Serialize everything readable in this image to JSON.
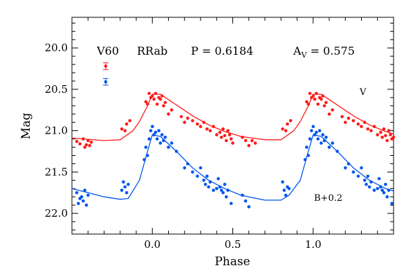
{
  "chart_data": {
    "type": "scatter",
    "xlabel": "Phase",
    "ylabel": "Mag",
    "xlim": [
      -0.5,
      1.5
    ],
    "ylim": [
      22.25,
      19.63
    ],
    "y_inverted": true,
    "grid": false,
    "x_ticks": [
      0.0,
      0.5,
      1.0
    ],
    "x_tick_labels": [
      "0.0",
      "0.5",
      "1.0"
    ],
    "y_ticks": [
      20.0,
      20.5,
      21.0,
      21.5,
      22.0
    ],
    "y_tick_labels": [
      "20.0",
      "20.5",
      "21.0",
      "21.5",
      "22.0"
    ],
    "header": {
      "star": "V60",
      "type": "RRab",
      "period": "P = 0.6184",
      "amp_label": "A",
      "amp_sub": "V",
      "amp_value": " = 0.575"
    },
    "colors": {
      "V": "#ff1a1a",
      "B": "#0055ee",
      "axis": "#000000"
    },
    "error_bars": [
      {
        "name": "V",
        "x": -0.29,
        "y": 20.22,
        "err": 0.04
      },
      {
        "name": "B",
        "x": -0.29,
        "y": 20.41,
        "err": 0.04
      }
    ],
    "series_labels": {
      "V": "V",
      "B": "B+0.2"
    },
    "series": [
      {
        "name": "V",
        "curve": [
          [
            -0.5,
            21.09
          ],
          [
            -0.3,
            21.12
          ],
          [
            -0.2,
            21.11
          ],
          [
            -0.12,
            21.0
          ],
          [
            -0.08,
            20.89
          ],
          [
            -0.03,
            20.7
          ],
          [
            0.0,
            20.56
          ],
          [
            0.05,
            20.56
          ],
          [
            0.15,
            20.69
          ],
          [
            0.25,
            20.82
          ],
          [
            0.35,
            20.93
          ],
          [
            0.45,
            21.01
          ],
          [
            0.55,
            21.07
          ],
          [
            0.7,
            21.11
          ],
          [
            0.8,
            21.11
          ],
          [
            0.88,
            21.0
          ],
          [
            0.92,
            20.89
          ],
          [
            0.97,
            20.7
          ],
          [
            1.0,
            20.56
          ],
          [
            1.05,
            20.56
          ],
          [
            1.15,
            20.69
          ],
          [
            1.25,
            20.82
          ],
          [
            1.35,
            20.93
          ],
          [
            1.45,
            21.01
          ],
          [
            1.5,
            21.04
          ]
        ],
        "x": [
          -0.47,
          -0.45,
          -0.43,
          -0.42,
          -0.41,
          -0.4,
          -0.39,
          -0.38,
          -0.19,
          -0.17,
          -0.16,
          -0.14,
          -0.04,
          -0.03,
          -0.02,
          -0.01,
          0.0,
          0.01,
          0.02,
          0.03,
          0.04,
          0.05,
          0.06,
          0.07,
          0.08,
          0.1,
          0.12,
          0.18,
          0.2,
          0.22,
          0.25,
          0.28,
          0.3,
          0.32,
          0.34,
          0.36,
          0.38,
          0.4,
          0.42,
          0.43,
          0.44,
          0.45,
          0.46,
          0.47,
          0.48,
          0.49,
          0.5,
          0.56,
          0.58,
          0.6,
          0.62,
          0.64,
          0.81,
          0.83,
          0.84,
          0.86,
          0.96,
          0.97,
          0.98,
          0.99,
          1.0,
          1.01,
          1.02,
          1.03,
          1.04,
          1.05,
          1.06,
          1.07,
          1.08,
          1.1,
          1.12,
          1.18,
          1.2,
          1.22,
          1.25,
          1.28,
          1.3,
          1.32,
          1.34,
          1.36,
          1.38,
          1.4,
          1.42,
          1.43,
          1.44,
          1.45,
          1.46,
          1.47,
          1.48,
          1.49,
          1.5
        ],
        "y": [
          21.13,
          21.16,
          21.1,
          21.2,
          21.17,
          21.12,
          21.18,
          21.14,
          20.98,
          21.0,
          20.92,
          20.88,
          20.65,
          20.68,
          20.55,
          20.6,
          20.58,
          20.62,
          20.55,
          20.68,
          20.6,
          20.62,
          20.58,
          20.7,
          20.66,
          20.8,
          20.75,
          20.83,
          20.9,
          20.85,
          20.88,
          20.92,
          20.95,
          20.9,
          20.98,
          21.0,
          20.95,
          21.05,
          21.02,
          21.08,
          20.98,
          21.06,
          21.12,
          21.0,
          21.05,
          21.1,
          21.15,
          21.08,
          21.12,
          21.18,
          21.12,
          21.15,
          20.98,
          21.0,
          20.92,
          20.88,
          20.65,
          20.68,
          20.55,
          20.6,
          20.58,
          20.62,
          20.55,
          20.68,
          20.6,
          20.62,
          20.58,
          20.7,
          20.66,
          20.8,
          20.75,
          20.83,
          20.9,
          20.85,
          20.88,
          20.92,
          20.95,
          20.9,
          20.98,
          21.0,
          20.95,
          21.05,
          21.02,
          21.08,
          20.98,
          21.06,
          21.12,
          21.0,
          21.05,
          21.1,
          21.08
        ]
      },
      {
        "name": "B",
        "curve": [
          [
            -0.5,
            21.7
          ],
          [
            -0.3,
            21.8
          ],
          [
            -0.2,
            21.83
          ],
          [
            -0.15,
            21.82
          ],
          [
            -0.08,
            21.6
          ],
          [
            -0.03,
            21.25
          ],
          [
            0.0,
            21.05
          ],
          [
            0.05,
            21.07
          ],
          [
            0.15,
            21.25
          ],
          [
            0.25,
            21.45
          ],
          [
            0.35,
            21.6
          ],
          [
            0.45,
            21.7
          ],
          [
            0.55,
            21.78
          ],
          [
            0.7,
            21.84
          ],
          [
            0.8,
            21.84
          ],
          [
            0.85,
            21.78
          ],
          [
            0.92,
            21.6
          ],
          [
            0.97,
            21.25
          ],
          [
            1.0,
            21.05
          ],
          [
            1.05,
            21.07
          ],
          [
            1.15,
            21.25
          ],
          [
            1.25,
            21.45
          ],
          [
            1.35,
            21.6
          ],
          [
            1.45,
            21.7
          ],
          [
            1.5,
            21.73
          ]
        ],
        "x": [
          -0.47,
          -0.46,
          -0.45,
          -0.44,
          -0.43,
          -0.42,
          -0.41,
          -0.4,
          -0.19,
          -0.18,
          -0.17,
          -0.16,
          -0.15,
          -0.05,
          -0.04,
          -0.03,
          -0.02,
          -0.01,
          0.0,
          0.01,
          0.02,
          0.03,
          0.04,
          0.05,
          0.06,
          0.07,
          0.08,
          0.1,
          0.12,
          0.15,
          0.2,
          0.22,
          0.25,
          0.28,
          0.3,
          0.32,
          0.33,
          0.34,
          0.35,
          0.36,
          0.38,
          0.4,
          0.41,
          0.42,
          0.43,
          0.44,
          0.45,
          0.46,
          0.47,
          0.49,
          0.56,
          0.58,
          0.6,
          0.81,
          0.82,
          0.83,
          0.84,
          0.85,
          0.95,
          0.96,
          0.97,
          0.98,
          0.99,
          1.0,
          1.01,
          1.02,
          1.03,
          1.04,
          1.05,
          1.06,
          1.07,
          1.08,
          1.1,
          1.12,
          1.15,
          1.2,
          1.22,
          1.25,
          1.28,
          1.3,
          1.32,
          1.33,
          1.34,
          1.35,
          1.36,
          1.38,
          1.4,
          1.41,
          1.42,
          1.43,
          1.44,
          1.45,
          1.46,
          1.47,
          1.49
        ],
        "y": [
          21.75,
          21.88,
          21.82,
          21.8,
          21.85,
          21.72,
          21.9,
          21.78,
          21.72,
          21.62,
          21.68,
          21.75,
          21.65,
          21.35,
          21.2,
          21.3,
          21.1,
          21.0,
          20.95,
          21.05,
          21.02,
          21.1,
          21.0,
          21.15,
          21.05,
          21.12,
          21.08,
          21.2,
          21.15,
          21.25,
          21.45,
          21.4,
          21.5,
          21.55,
          21.45,
          21.6,
          21.65,
          21.55,
          21.68,
          21.62,
          21.72,
          21.7,
          21.58,
          21.68,
          21.72,
          21.75,
          21.65,
          21.8,
          21.72,
          21.88,
          21.78,
          21.85,
          21.92,
          21.62,
          21.72,
          21.78,
          21.68,
          21.7,
          21.35,
          21.2,
          21.3,
          21.1,
          21.0,
          20.95,
          21.05,
          21.02,
          21.1,
          21.0,
          21.15,
          21.05,
          21.12,
          21.08,
          21.2,
          21.15,
          21.25,
          21.45,
          21.4,
          21.5,
          21.55,
          21.45,
          21.6,
          21.65,
          21.55,
          21.68,
          21.62,
          21.72,
          21.7,
          21.58,
          21.68,
          21.72,
          21.75,
          21.65,
          21.8,
          21.72,
          21.88
        ]
      }
    ]
  }
}
